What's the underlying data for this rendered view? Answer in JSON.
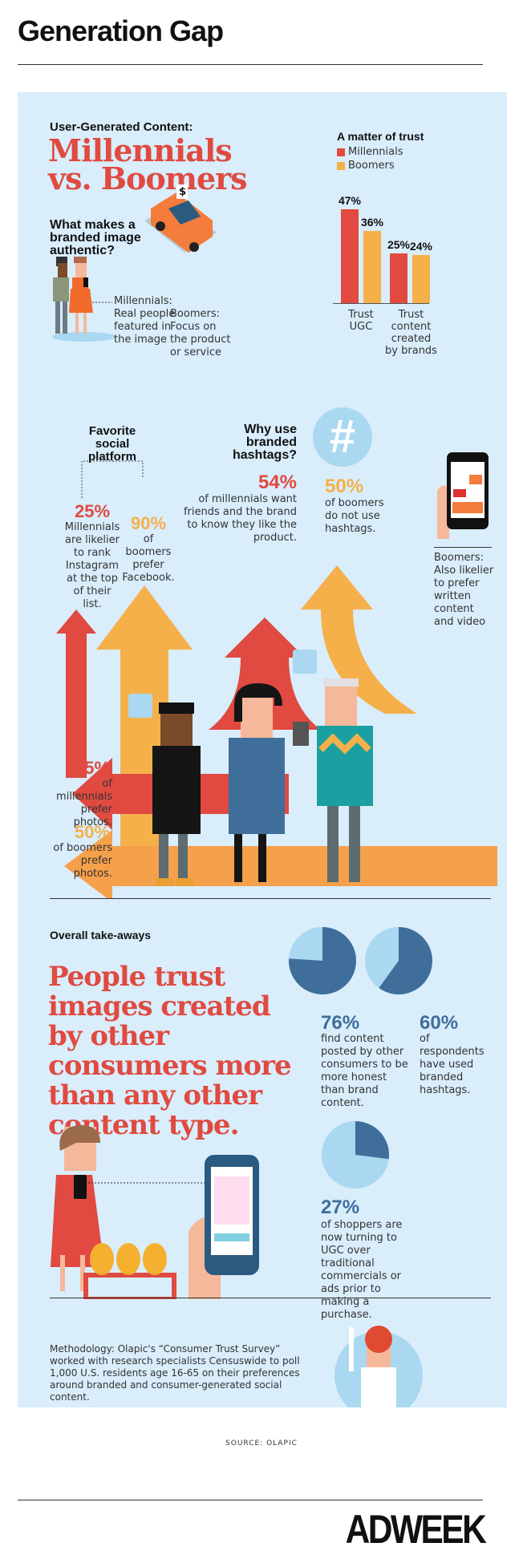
{
  "header": {
    "title": "Generation Gap"
  },
  "intro": {
    "kicker": "User-Generated Content:",
    "headline_1": "Millennials",
    "headline_2": "vs. Boomers",
    "question": "What makes a branded image authentic?",
    "millennials_answer": "Millennials: Real people featured in the image",
    "boomers_answer": "Boomers: Focus on the product or service",
    "car_sign": "$"
  },
  "chart_data": [
    {
      "type": "bar",
      "title": "A matter of trust",
      "categories": [
        "Trust UGC",
        "Trust content created by brands"
      ],
      "series": [
        {
          "name": "Millennials",
          "values": [
            47,
            25
          ],
          "color": "#e04a40"
        },
        {
          "name": "Boomers",
          "values": [
            36,
            24
          ],
          "color": "#f5b04a"
        }
      ],
      "value_labels": [
        [
          "47%",
          "25%"
        ],
        [
          "36%",
          "24%"
        ]
      ],
      "legend": "top-left",
      "grid": false
    },
    {
      "type": "pie",
      "values": [
        76,
        24
      ],
      "colors": [
        "#3f6e9a",
        "#a9d8f0"
      ],
      "label": "76%"
    },
    {
      "type": "pie",
      "values": [
        60,
        40
      ],
      "colors": [
        "#3f6e9a",
        "#a9d8f0"
      ],
      "label": "60%"
    },
    {
      "type": "pie",
      "values": [
        27,
        73
      ],
      "colors": [
        "#3f6e9a",
        "#a9d8f0"
      ],
      "label": "27%"
    }
  ],
  "social": {
    "heading": "Favorite social platform",
    "mill_pct": "25%",
    "mill_text": "Millennials are likelier to rank Instagram at the top of their list.",
    "boom_pct": "90%",
    "boom_text": "of boomers prefer Facebook.",
    "hashtag_heading": "Why use branded hashtags?",
    "hashtag_icon": "#",
    "hash_mill_pct": "54%",
    "hash_mill_text": "of millennials want friends and the brand to know they like the product.",
    "hash_boom_pct": "50%",
    "hash_boom_text": "of boomers do not use hashtags.",
    "boomers_video": "Boomers: Also likelier to prefer written content and video",
    "photo_mill_pct": "75%",
    "photo_mill_text": "of millennials prefer photos.",
    "photo_boom_pct": "50%",
    "photo_boom_text": "of boomers prefer photos."
  },
  "takeaways": {
    "heading": "Overall take-aways",
    "headline": "People trust images created by other consumers more than any other content type.",
    "stat1_pct": "76%",
    "stat1_text": "find content posted by other consumers to be more honest than brand content.",
    "stat2_pct": "60%",
    "stat2_text": "of respondents have used branded hashtags.",
    "stat3_pct": "27%",
    "stat3_text": "of shoppers are now turning to UGC over traditional commercials or ads prior to making a purchase."
  },
  "methodology": "Methodology: Olapic's “Consumer Trust Survey” worked with research specialists Censuswide to poll 1,000 U.S. residents age 16-65 on their preferences around branded and consumer-generated social content.",
  "footer": {
    "source": "SOURCE: OLAPIC",
    "logo": "ADWEEK"
  }
}
